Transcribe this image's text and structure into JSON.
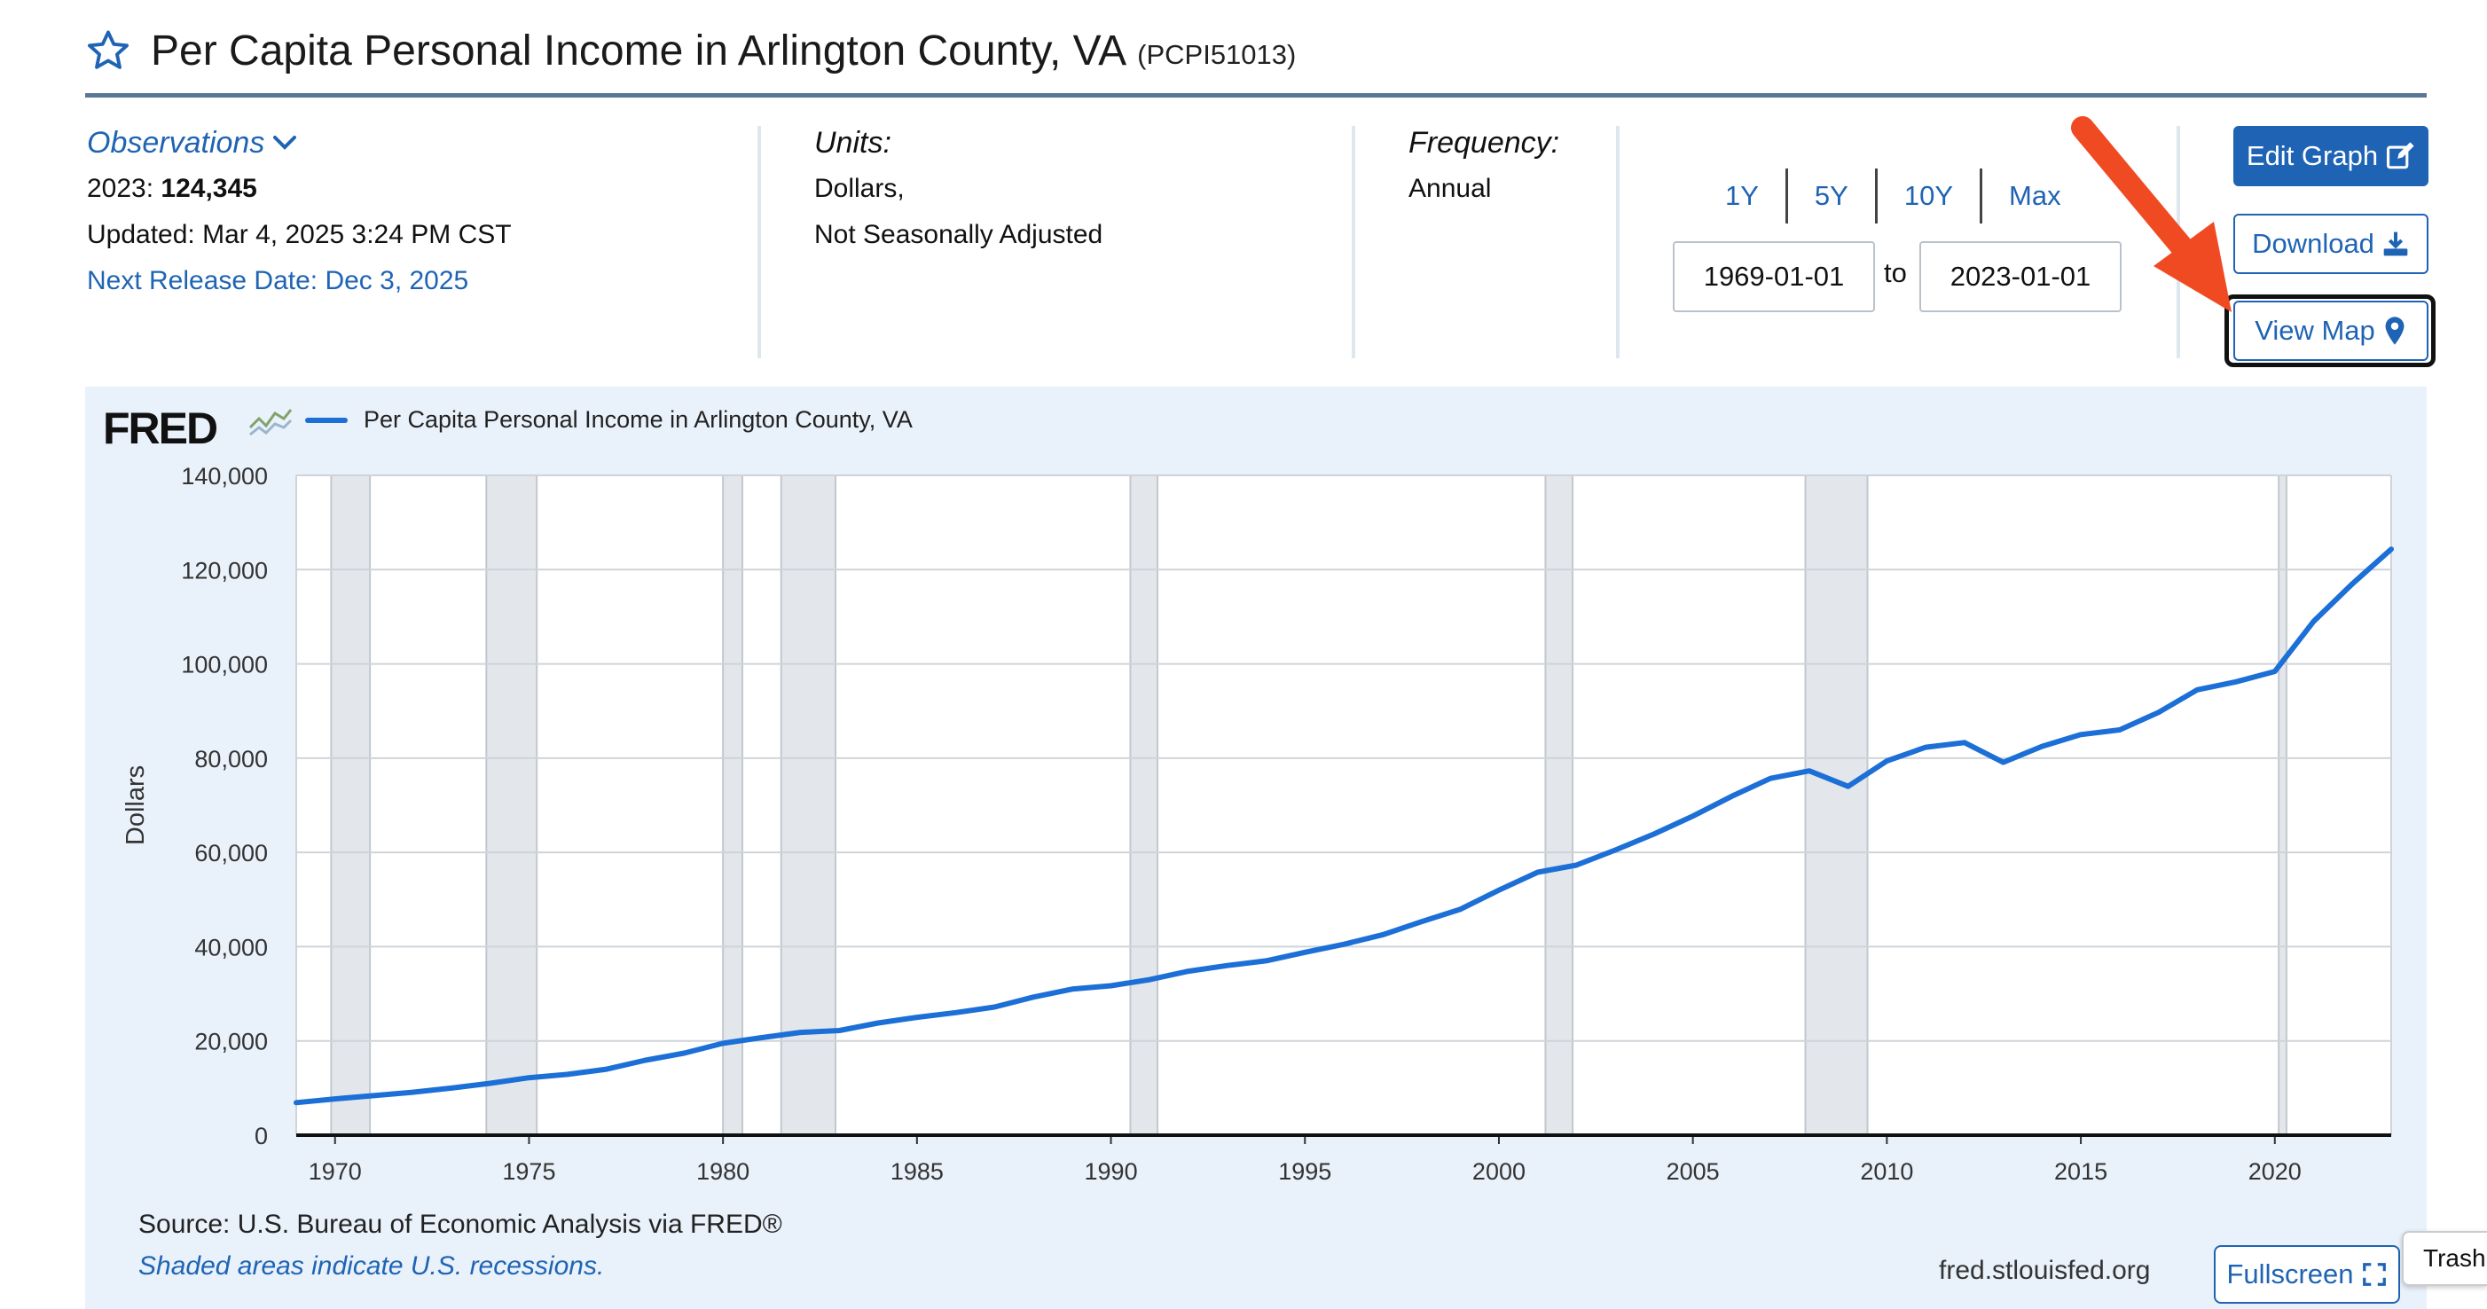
{
  "header": {
    "title": "Per Capita Personal Income in Arlington County, VA",
    "series_id": "(PCPI51013)"
  },
  "observations": {
    "toggle_label": "Observations",
    "year_label": "2023:",
    "value": "124,345",
    "updated": "Updated: Mar 4, 2025 3:24 PM CST",
    "next_release": "Next Release Date: Dec 3, 2025"
  },
  "units": {
    "label": "Units:",
    "line1": "Dollars,",
    "line2": "Not Seasonally Adjusted"
  },
  "frequency": {
    "label": "Frequency:",
    "value": "Annual"
  },
  "range": {
    "buttons": [
      "1Y",
      "5Y",
      "10Y",
      "Max"
    ],
    "start": "1969-01-01",
    "to_label": "to",
    "end": "2023-01-01"
  },
  "actions": {
    "edit_graph": "Edit Graph",
    "download": "Download",
    "view_map": "View Map",
    "fullscreen": "Fullscreen",
    "trash": "Trash"
  },
  "chart_footer": {
    "source": "Source: U.S. Bureau of Economic Analysis via FRED®",
    "shaded_note": "Shaded areas indicate U.S. recessions.",
    "url": "fred.stlouisfed.org"
  },
  "colors": {
    "accent": "#1f64b4",
    "line": "#1c6fd6",
    "panel": "#e9f1fa",
    "recession": "#e3e7eb",
    "arrow": "#f04a23"
  },
  "chart_data": {
    "type": "line",
    "logo": "FRED",
    "ylabel": "Dollars",
    "ylim": [
      0,
      140000
    ],
    "xlim": [
      1969,
      2023
    ],
    "yticks": [
      0,
      20000,
      40000,
      60000,
      80000,
      100000,
      120000,
      140000
    ],
    "ytick_labels": [
      "0",
      "20,000",
      "40,000",
      "60,000",
      "80,000",
      "100,000",
      "120,000",
      "140,000"
    ],
    "xticks": [
      1970,
      1975,
      1980,
      1985,
      1990,
      1995,
      2000,
      2005,
      2010,
      2015,
      2020
    ],
    "grid": true,
    "legend": "top-left",
    "recessions": [
      [
        1969.9,
        1970.9
      ],
      [
        1973.9,
        1975.2
      ],
      [
        1980.0,
        1980.5
      ],
      [
        1981.5,
        1982.9
      ],
      [
        1990.5,
        1991.2
      ],
      [
        2001.2,
        2001.9
      ],
      [
        2007.9,
        2009.5
      ],
      [
        2020.1,
        2020.3
      ]
    ],
    "series": [
      {
        "name": "Per Capita Personal Income in Arlington County, VA",
        "x": [
          1969,
          1970,
          1971,
          1972,
          1973,
          1974,
          1975,
          1976,
          1977,
          1978,
          1979,
          1980,
          1981,
          1982,
          1983,
          1984,
          1985,
          1986,
          1987,
          1988,
          1989,
          1990,
          1991,
          1992,
          1993,
          1994,
          1995,
          1996,
          1997,
          1998,
          1999,
          2000,
          2001,
          2002,
          2003,
          2004,
          2005,
          2006,
          2007,
          2008,
          2009,
          2010,
          2011,
          2012,
          2013,
          2014,
          2015,
          2016,
          2017,
          2018,
          2019,
          2020,
          2021,
          2022,
          2023
        ],
        "values": [
          6900,
          7700,
          8400,
          9100,
          10000,
          11000,
          12200,
          12900,
          14000,
          15900,
          17400,
          19500,
          20700,
          21800,
          22200,
          23800,
          25000,
          26000,
          27200,
          29300,
          31000,
          31700,
          33000,
          34800,
          36000,
          37000,
          38800,
          40500,
          42500,
          45300,
          47900,
          52000,
          55800,
          57300,
          60500,
          63900,
          67700,
          71900,
          75700,
          77300,
          74000,
          79400,
          82300,
          83300,
          79100,
          82500,
          85000,
          86000,
          89700,
          94500,
          96200,
          98400,
          109000,
          117000,
          124345
        ]
      }
    ]
  }
}
